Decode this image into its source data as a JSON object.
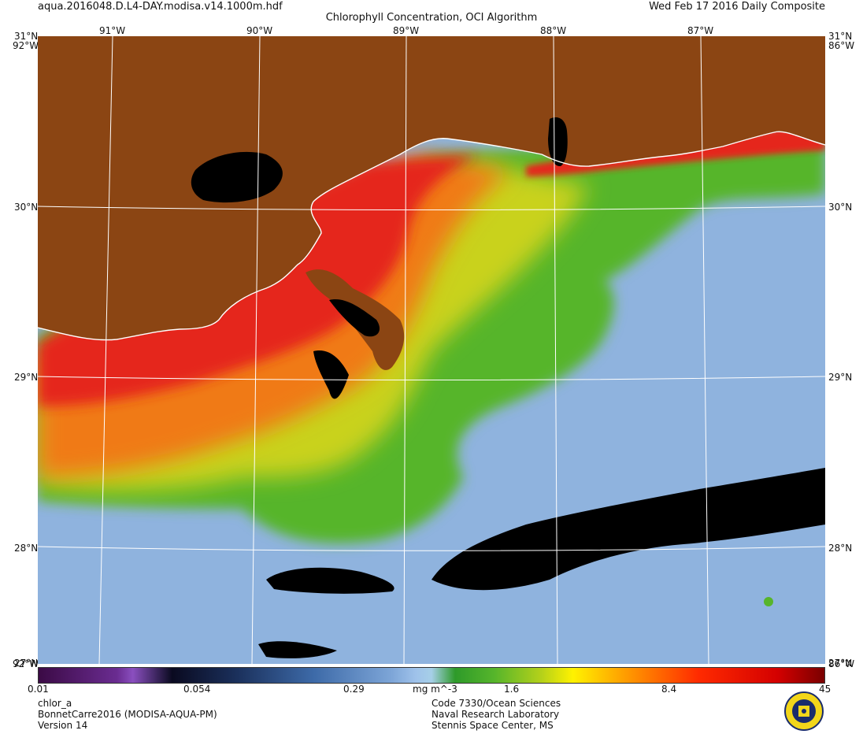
{
  "header": {
    "filename": "aqua.2016048.D.L4-DAY.modisa.v14.1000m.hdf",
    "title": "Chlorophyll Concentration, OCI Algorithm",
    "date": "Wed Feb 17 2016 Daily Composite"
  },
  "map": {
    "lon_labels": [
      "91°W",
      "90°W",
      "89°W",
      "88°W",
      "87°W"
    ],
    "lat_labels": [
      "31°N",
      "30°N",
      "29°N",
      "28°N"
    ],
    "corner_labels": {
      "top_left": "31°N",
      "top_left_w": "92°W",
      "top_right": "31°N",
      "top_right_w": "86°W",
      "bottom_left": "27°N",
      "bottom_left_w": "92°W",
      "bottom_right": "27°N",
      "bottom_right_w": "86°W"
    },
    "colors": {
      "land": "#8b4513",
      "low_chl": "#8fb3de",
      "mid_chl": "#57b52b",
      "high_chl": "#f07a14",
      "very_high_chl": "#e5251a",
      "no_data": "#000000",
      "coastline": "#ffffff",
      "gridline": "#ffffff"
    }
  },
  "colorbar": {
    "tick_labels": [
      "0.01",
      "0.054",
      "0.29",
      "mg m^-3",
      "1.6",
      "8.4",
      "45"
    ],
    "scale": "log"
  },
  "footer": {
    "left": [
      "chlor_a",
      "BonnetCarre2016 (MODISA-AQUA-PM)",
      "Version 14"
    ],
    "right": [
      "Code 7330/Ocean Sciences",
      "Naval Research Laboratory",
      "Stennis Space Center, MS"
    ]
  },
  "logo": {
    "icon": "nrl-seal-icon"
  }
}
